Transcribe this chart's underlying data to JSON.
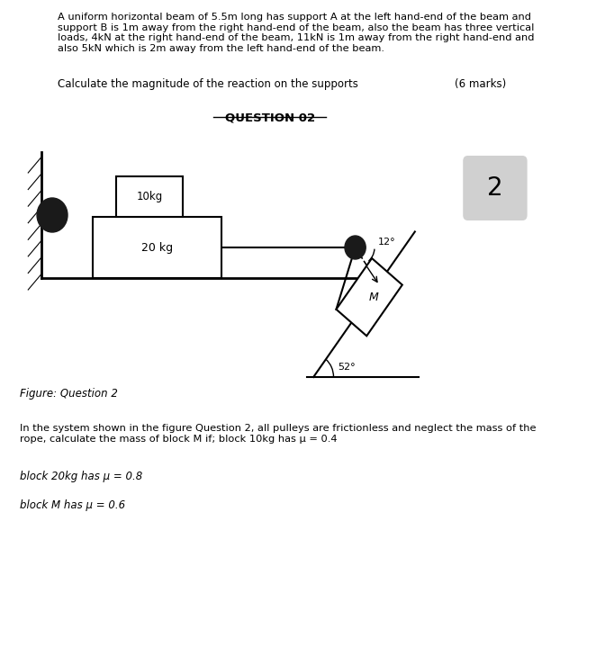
{
  "title_text": "A uniform horizontal beam of 5.5m long has support A at the left hand-end of the beam and\nsupport B is 1m away from the right hand-end of the beam, also the beam has three vertical\nloads, 4kN at the right hand-end of the beam, 11kN is 1m away from the right hand-end and\nalso 5kN which is 2m away from the left hand-end of the beam.",
  "question1_text": "Calculate the magnitude of the reaction on the supports",
  "marks_text": "(6 marks)",
  "question02_label": "QUESTION 02",
  "figure_label": "Figure: Question 2",
  "block1_label": "10kg",
  "block2_label": "20 kg",
  "block_M_label": "M",
  "angle1_label": "12°",
  "angle2_label": "52°",
  "number_badge": "2",
  "bottom_text_line1": "In the system shown in the figure Question 2, all pulleys are frictionless and neglect the mass of the\nrope, calculate the mass of block M if; block 10kg has μ = 0.4",
  "bottom_text_line2": "block 20kg has μ = 0.8",
  "bottom_text_line3": "block M has μ = 0.6",
  "bg_color": "#ffffff",
  "text_color": "#000000",
  "line_color": "#000000",
  "block_fill": "#ffffff",
  "block_edge": "#000000",
  "pulley_color": "#1a1a1a",
  "badge_color": "#d0d0d0"
}
